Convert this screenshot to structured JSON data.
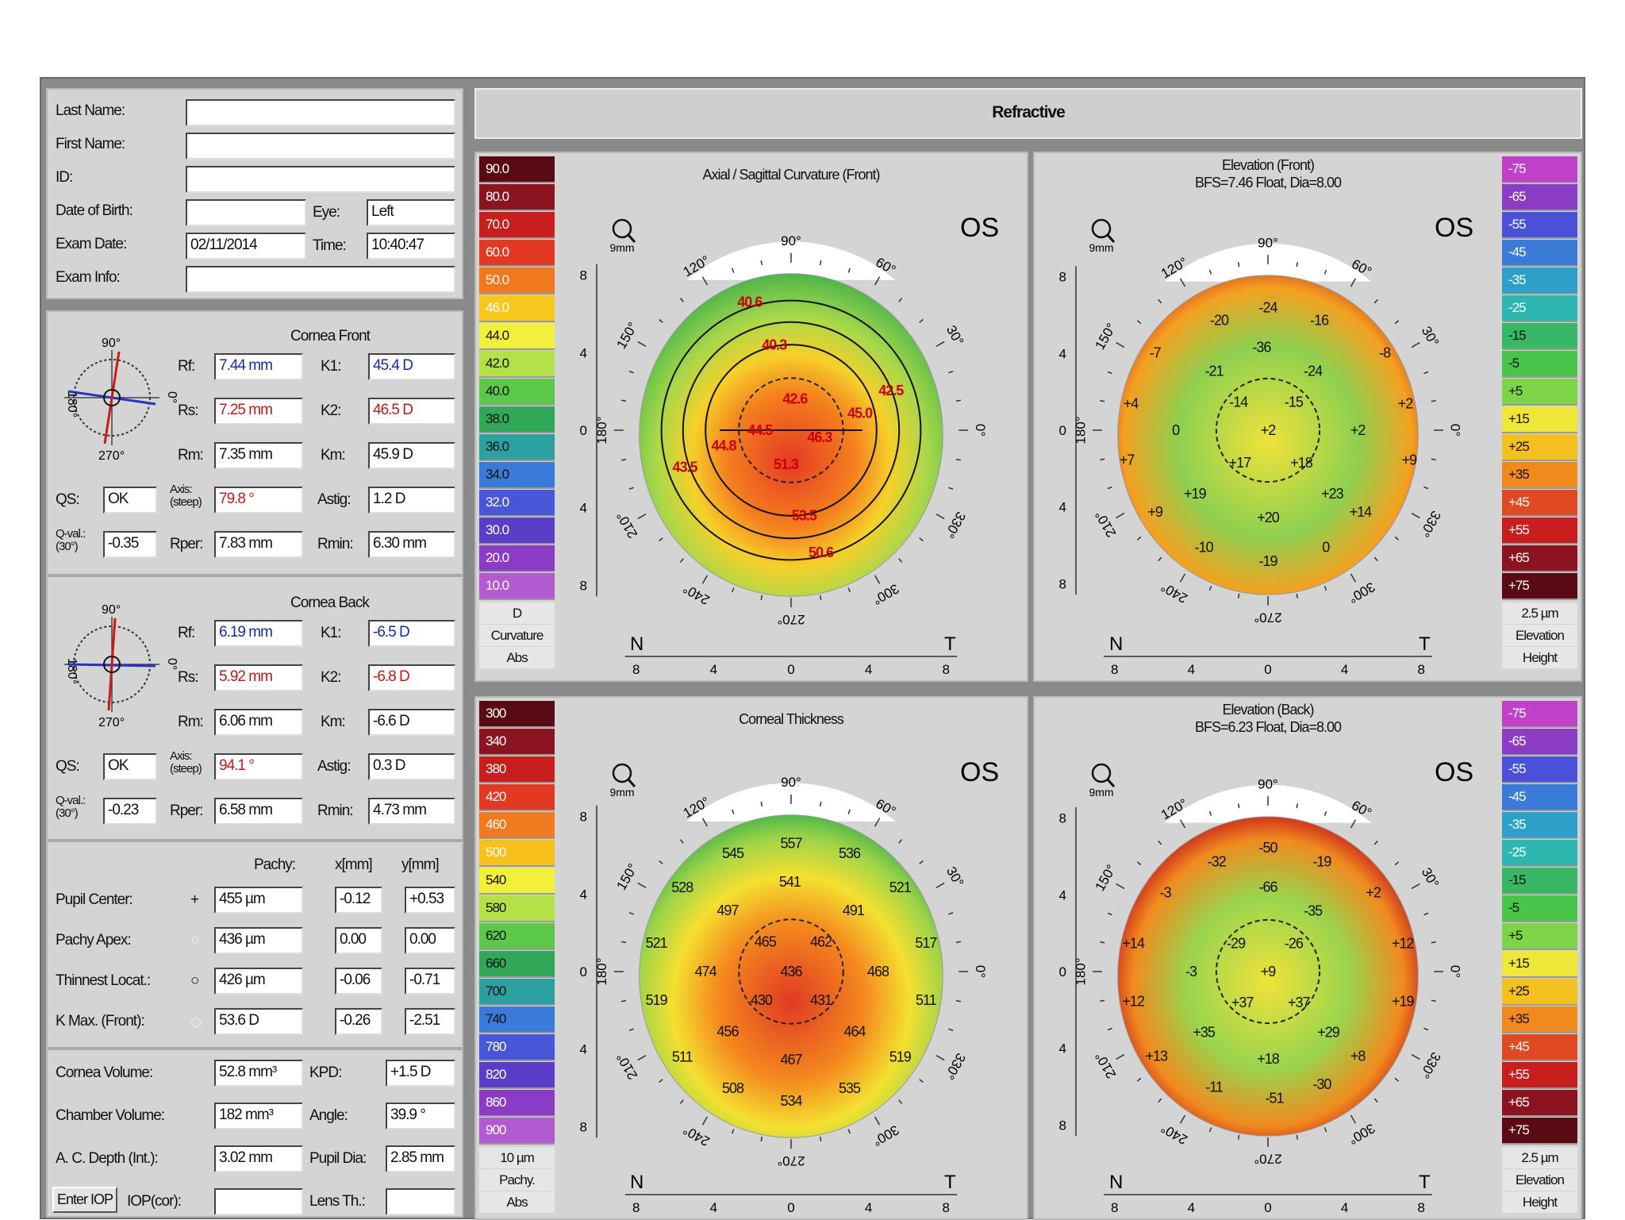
{
  "patient": {
    "last_name_label": "Last Name:",
    "last_name": "",
    "first_name_label": "First Name:",
    "first_name": "",
    "id_label": "ID:",
    "id": "",
    "dob_label": "Date of Birth:",
    "dob": "",
    "eye_label": "Eye:",
    "eye": "Left",
    "exam_date_label": "Exam Date:",
    "exam_date": "02/11/2014",
    "time_label": "Time:",
    "time": "10:40:47",
    "exam_info_label": "Exam Info:",
    "exam_info": ""
  },
  "cornea_front": {
    "title": "Cornea Front",
    "axis_90": "90°",
    "axis_180": "180°",
    "axis_0": "0°",
    "axis_270": "270°",
    "rf_label": "Rf:",
    "rf": "7.44 mm",
    "rs_label": "Rs:",
    "rs": "7.25 mm",
    "rm_label": "Rm:",
    "rm": "7.35 mm",
    "k1_label": "K1:",
    "k1": "45.4 D",
    "k2_label": "K2:",
    "k2": "46.5 D",
    "km_label": "Km:",
    "km": "45.9 D",
    "qs_label": "QS:",
    "qs": "OK",
    "axis_label": "Axis:",
    "axis_sub": "(steep)",
    "axis": "79.8 °",
    "astig_label": "Astig:",
    "astig": "1.2 D",
    "qval_label": "Q-val.:",
    "qval_sub": "(30°)",
    "qval": "-0.35",
    "rper_label": "Rper:",
    "rper": "7.83 mm",
    "rmin_label": "Rmin:",
    "rmin": "6.30 mm"
  },
  "cornea_back": {
    "title": "Cornea Back",
    "axis_90": "90°",
    "axis_180": "180°",
    "axis_0": "0°",
    "axis_270": "270°",
    "rf_label": "Rf:",
    "rf": "6.19 mm",
    "rs_label": "Rs:",
    "rs": "5.92 mm",
    "rm_label": "Rm:",
    "rm": "6.06 mm",
    "k1_label": "K1:",
    "k1": "-6.5 D",
    "k2_label": "K2:",
    "k2": "-6.8 D",
    "km_label": "Km:",
    "km": "-6.6 D",
    "qs_label": "QS:",
    "qs": "OK",
    "axis_label": "Axis:",
    "axis_sub": "(steep)",
    "axis": "94.1 °",
    "astig_label": "Astig:",
    "astig": "0.3 D",
    "qval_label": "Q-val.:",
    "qval_sub": "(30°)",
    "qval": "-0.23",
    "rper_label": "Rper:",
    "rper": "6.58 mm",
    "rmin_label": "Rmin:",
    "rmin": "4.73 mm"
  },
  "pachy": {
    "col_pachy": "Pachy:",
    "col_x": "x[mm]",
    "col_y": "y[mm]",
    "rows": [
      {
        "label": "Pupil Center:",
        "symbol": "+",
        "pachy": "455 µm",
        "x": "-0.12",
        "y": "+0.53"
      },
      {
        "label": "Pachy Apex:",
        "symbol": "○",
        "pachy": "436 µm",
        "x": "0.00",
        "y": "0.00"
      },
      {
        "label": "Thinnest Locat.:",
        "symbol": "○",
        "pachy": "426 µm",
        "x": "-0.06",
        "y": "-0.71"
      },
      {
        "label": "K Max. (Front):",
        "symbol": "◇",
        "pachy": "53.6 D",
        "x": "-0.26",
        "y": "-2.51"
      }
    ]
  },
  "volumes": {
    "cornea_volume_label": "Cornea Volume:",
    "cornea_volume": "52.8 mm³",
    "kpd_label": "KPD:",
    "kpd": "+1.5 D",
    "chamber_volume_label": "Chamber Volume:",
    "chamber_volume": "182 mm³",
    "angle_label": "Angle:",
    "angle": "39.9 °",
    "ac_depth_label": "A. C. Depth (Int.):",
    "ac_depth": "3.02 mm",
    "pupil_dia_label": "Pupil Dia:",
    "pupil_dia": "2.85 mm",
    "enter_iop_button": "Enter IOP",
    "iop_cor_label": "IOP(cor):",
    "iop_cor": "",
    "lens_th_label": "Lens Th.:",
    "lens_th": ""
  },
  "header": {
    "title": "Refractive"
  },
  "scales": {
    "curvature": {
      "values": [
        "90.0",
        "80.0",
        "70.0",
        "60.0",
        "50.0",
        "46.0",
        "44.0",
        "42.0",
        "40.0",
        "38.0",
        "36.0",
        "34.0",
        "32.0",
        "30.0",
        "20.0",
        "10.0"
      ],
      "unit": "D",
      "name": "Curvature",
      "mode": "Abs",
      "colors": [
        "#5a0a12",
        "#8c1420",
        "#c81e1e",
        "#e23a22",
        "#f0781e",
        "#f7c81c",
        "#f2f03a",
        "#b4e048",
        "#5cc84a",
        "#30a858",
        "#2ca0a0",
        "#3a7ad8",
        "#4856d8",
        "#5a3ec8",
        "#8a3cc4",
        "#b45ad0"
      ]
    },
    "elevation_front": {
      "values": [
        "-75",
        "-65",
        "-55",
        "-45",
        "-35",
        "-25",
        "-15",
        "-5",
        "+5",
        "+15",
        "+25",
        "+35",
        "+45",
        "+55",
        "+65",
        "+75"
      ],
      "unit": "2.5 µm",
      "name": "Elevation",
      "mode": "Height",
      "colors": [
        "#c040c8",
        "#8a3cc4",
        "#4a50d8",
        "#3a7ad8",
        "#2ca0c8",
        "#2cb8b0",
        "#38b864",
        "#48c448",
        "#7ed448",
        "#f0e838",
        "#f4c020",
        "#f08a1e",
        "#e04a22",
        "#c81e1e",
        "#8c1420",
        "#5a0a12"
      ]
    },
    "thickness": {
      "values": [
        "300",
        "340",
        "380",
        "420",
        "460",
        "500",
        "540",
        "580",
        "620",
        "660",
        "700",
        "740",
        "780",
        "820",
        "860",
        "900"
      ],
      "unit": "10 µm",
      "name": "Pachy.",
      "mode": "Abs",
      "colors": [
        "#5a0a12",
        "#8c1420",
        "#c81e1e",
        "#e23a22",
        "#f07a1e",
        "#f7c01c",
        "#f2f03a",
        "#b4e048",
        "#5cc84a",
        "#30a858",
        "#2ca0a0",
        "#3a7ad8",
        "#4856d8",
        "#5a3ec8",
        "#8a3cc4",
        "#b45ad0"
      ]
    },
    "elevation_back": {
      "values": [
        "-75",
        "-65",
        "-55",
        "-45",
        "-35",
        "-25",
        "-15",
        "-5",
        "+5",
        "+15",
        "+25",
        "+35",
        "+45",
        "+55",
        "+65",
        "+75"
      ],
      "unit": "2.5 µm",
      "name": "Elevation",
      "mode": "Height",
      "colors": [
        "#c040c8",
        "#8a3cc4",
        "#4a50d8",
        "#3a7ad8",
        "#2ca0c8",
        "#2cb8b0",
        "#38b864",
        "#48c448",
        "#7ed448",
        "#f0e838",
        "#f4c020",
        "#f08a1e",
        "#e04a22",
        "#c81e1e",
        "#8c1420",
        "#5a0a12"
      ]
    }
  },
  "maps": {
    "axial": {
      "title": "Axial / Sagittal Curvature (Front)",
      "subtitle": "",
      "eye": "OS",
      "zoom": "9mm",
      "angles": {
        "a90": "90°",
        "a60": "60°",
        "a30": "30°",
        "a0": "0°",
        "a330": "330°",
        "a300": "300°",
        "a270": "270°",
        "a240": "240°",
        "a210": "210°",
        "a180": "180°",
        "a150": "150°",
        "a120": "120°"
      },
      "nasal": "N",
      "temporal": "T",
      "axis_ticks": [
        "8",
        "4",
        "0",
        "4",
        "8"
      ],
      "values": [
        {
          "t": "40.6",
          "bx": -0.32,
          "by": -0.9
        },
        {
          "t": "40.3",
          "bx": -0.13,
          "by": -0.6
        },
        {
          "t": "42.6",
          "bx": 0.03,
          "by": -0.22
        },
        {
          "t": "44.5",
          "bx": -0.24,
          "by": 0.0
        },
        {
          "t": "46.3",
          "bx": 0.22,
          "by": 0.05
        },
        {
          "t": "45.0",
          "bx": 0.53,
          "by": -0.12
        },
        {
          "t": "42.5",
          "bx": 0.77,
          "by": -0.28
        },
        {
          "t": "44.8",
          "bx": -0.52,
          "by": 0.11
        },
        {
          "t": "43.5",
          "bx": -0.82,
          "by": 0.26
        },
        {
          "t": "51.3",
          "bx": -0.04,
          "by": 0.24
        },
        {
          "t": "53.5",
          "bx": 0.1,
          "by": 0.6
        },
        {
          "t": "50.6",
          "bx": 0.23,
          "by": 0.86
        }
      ]
    },
    "elev_front": {
      "title": "Elevation (Front)",
      "subtitle": "BFS=7.46 Float, Dia=8.00",
      "eye": "OS",
      "zoom": "9mm",
      "angles": {
        "a90": "90°",
        "a60": "60°",
        "a30": "30°",
        "a0": "0°",
        "a330": "330°",
        "a300": "300°",
        "a270": "270°",
        "a240": "240°",
        "a210": "210°",
        "a180": "180°",
        "a150": "150°",
        "a120": "120°"
      },
      "nasal": "N",
      "temporal": "T",
      "axis_ticks": [
        "8",
        "4",
        "0",
        "4",
        "8"
      ],
      "values": [
        {
          "t": "-24",
          "bx": 0.0,
          "by": -0.87
        },
        {
          "t": "-20",
          "bx": -0.38,
          "by": -0.78
        },
        {
          "t": "-16",
          "bx": 0.4,
          "by": -0.78
        },
        {
          "t": "-36",
          "bx": -0.05,
          "by": -0.59
        },
        {
          "t": "-7",
          "bx": -0.88,
          "by": -0.55
        },
        {
          "t": "-8",
          "bx": 0.91,
          "by": -0.55
        },
        {
          "t": "-21",
          "bx": -0.42,
          "by": -0.42
        },
        {
          "t": "-24",
          "bx": 0.35,
          "by": -0.42
        },
        {
          "t": "-14",
          "bx": -0.23,
          "by": -0.2
        },
        {
          "t": "-15",
          "bx": 0.2,
          "by": -0.2
        },
        {
          "t": "+4",
          "bx": -1.07,
          "by": -0.19
        },
        {
          "t": "+2",
          "bx": 1.07,
          "by": -0.19
        },
        {
          "t": "0",
          "bx": -0.72,
          "by": 0.0
        },
        {
          "t": "+2",
          "bx": 0.0,
          "by": 0.0
        },
        {
          "t": "+2",
          "bx": 0.7,
          "by": 0.0
        },
        {
          "t": "+7",
          "bx": -1.1,
          "by": 0.21
        },
        {
          "t": "+9",
          "bx": 1.1,
          "by": 0.21
        },
        {
          "t": "+17",
          "bx": -0.22,
          "by": 0.23
        },
        {
          "t": "+18",
          "bx": 0.26,
          "by": 0.23
        },
        {
          "t": "+19",
          "bx": -0.57,
          "by": 0.45
        },
        {
          "t": "+23",
          "bx": 0.5,
          "by": 0.45
        },
        {
          "t": "+9",
          "bx": -0.88,
          "by": 0.58
        },
        {
          "t": "+14",
          "bx": 0.72,
          "by": 0.58
        },
        {
          "t": "+20",
          "bx": 0.0,
          "by": 0.62
        },
        {
          "t": "-10",
          "bx": -0.5,
          "by": 0.83
        },
        {
          "t": "0",
          "bx": 0.45,
          "by": 0.83
        },
        {
          "t": "-19",
          "bx": 0.0,
          "by": 0.93
        }
      ]
    },
    "thickness": {
      "title": "Corneal Thickness",
      "subtitle": "",
      "eye": "OS",
      "zoom": "9mm",
      "angles": {
        "a90": "90°",
        "a60": "60°",
        "a30": "30°",
        "a0": "0°",
        "a330": "330°",
        "a300": "300°",
        "a270": "270°",
        "a240": "240°",
        "a210": "210°",
        "a180": "180°",
        "a150": "150°",
        "a120": "120°"
      },
      "nasal": "N",
      "temporal": "T",
      "axis_ticks": [
        "8",
        "4",
        "0",
        "4",
        "8"
      ],
      "values": [
        {
          "t": "557",
          "bx": 0.0,
          "by": -0.9
        },
        {
          "t": "545",
          "bx": -0.45,
          "by": -0.83
        },
        {
          "t": "536",
          "bx": 0.45,
          "by": -0.83
        },
        {
          "t": "528",
          "bx": -0.84,
          "by": -0.59
        },
        {
          "t": "541",
          "bx": -0.01,
          "by": -0.63
        },
        {
          "t": "521",
          "bx": 0.84,
          "by": -0.59
        },
        {
          "t": "497",
          "bx": -0.49,
          "by": -0.43
        },
        {
          "t": "491",
          "bx": 0.48,
          "by": -0.43
        },
        {
          "t": "465",
          "bx": -0.2,
          "by": -0.21
        },
        {
          "t": "462",
          "bx": 0.23,
          "by": -0.21
        },
        {
          "t": "521",
          "bx": -1.04,
          "by": -0.2
        },
        {
          "t": "517",
          "bx": 1.04,
          "by": -0.2
        },
        {
          "t": "474",
          "bx": -0.66,
          "by": 0.0
        },
        {
          "t": "436",
          "bx": 0.0,
          "by": 0.0
        },
        {
          "t": "468",
          "bx": 0.67,
          "by": 0.0
        },
        {
          "t": "430",
          "bx": -0.23,
          "by": 0.2
        },
        {
          "t": "431",
          "bx": 0.23,
          "by": 0.2
        },
        {
          "t": "519",
          "bx": -1.04,
          "by": 0.2
        },
        {
          "t": "511",
          "bx": 1.04,
          "by": 0.2
        },
        {
          "t": "456",
          "bx": -0.49,
          "by": 0.42
        },
        {
          "t": "464",
          "bx": 0.49,
          "by": 0.42
        },
        {
          "t": "511",
          "bx": -0.84,
          "by": 0.6
        },
        {
          "t": "467",
          "bx": 0.0,
          "by": 0.62
        },
        {
          "t": "519",
          "bx": 0.84,
          "by": 0.6
        },
        {
          "t": "508",
          "bx": -0.45,
          "by": 0.82
        },
        {
          "t": "535",
          "bx": 0.45,
          "by": 0.82
        },
        {
          "t": "534",
          "bx": 0.0,
          "by": 0.91
        }
      ]
    },
    "elev_back": {
      "title": "Elevation (Back)",
      "subtitle": "BFS=6.23 Float, Dia=8.00",
      "eye": "OS",
      "zoom": "9mm",
      "angles": {
        "a90": "90°",
        "a60": "60°",
        "a30": "30°",
        "a0": "0°",
        "a330": "330°",
        "a300": "300°",
        "a270": "270°",
        "a240": "240°",
        "a210": "210°",
        "a180": "180°",
        "a150": "150°",
        "a120": "120°"
      },
      "nasal": "N",
      "temporal": "T",
      "axis_ticks": [
        "8",
        "4",
        "0",
        "4",
        "8"
      ],
      "values": [
        {
          "t": "-50",
          "bx": 0.0,
          "by": -0.88
        },
        {
          "t": "-32",
          "bx": -0.4,
          "by": -0.78
        },
        {
          "t": "-19",
          "bx": 0.42,
          "by": -0.78
        },
        {
          "t": "-3",
          "bx": -0.8,
          "by": -0.56
        },
        {
          "t": "-66",
          "bx": 0.0,
          "by": -0.6
        },
        {
          "t": "+2",
          "bx": 0.82,
          "by": -0.56
        },
        {
          "t": "-35",
          "bx": 0.35,
          "by": -0.43
        },
        {
          "t": "-29",
          "bx": -0.25,
          "by": -0.2
        },
        {
          "t": "-26",
          "bx": 0.2,
          "by": -0.2
        },
        {
          "t": "+14",
          "bx": -1.05,
          "by": -0.2
        },
        {
          "t": "+12",
          "bx": 1.05,
          "by": -0.2
        },
        {
          "t": "-3",
          "bx": -0.6,
          "by": 0.0
        },
        {
          "t": "+9",
          "bx": 0.0,
          "by": 0.0
        },
        {
          "t": "+12",
          "bx": -1.05,
          "by": 0.21
        },
        {
          "t": "+19",
          "bx": 1.05,
          "by": 0.21
        },
        {
          "t": "+37",
          "bx": -0.2,
          "by": 0.22
        },
        {
          "t": "+37",
          "bx": 0.24,
          "by": 0.22
        },
        {
          "t": "+35",
          "bx": -0.5,
          "by": 0.43
        },
        {
          "t": "+29",
          "bx": 0.47,
          "by": 0.43
        },
        {
          "t": "+13",
          "bx": -0.87,
          "by": 0.6
        },
        {
          "t": "+18",
          "bx": 0.0,
          "by": 0.62
        },
        {
          "t": "+8",
          "bx": 0.7,
          "by": 0.6
        },
        {
          "t": "-11",
          "bx": -0.42,
          "by": 0.82
        },
        {
          "t": "-30",
          "bx": 0.42,
          "by": 0.8
        },
        {
          "t": "-51",
          "bx": 0.05,
          "by": 0.9
        }
      ]
    }
  }
}
